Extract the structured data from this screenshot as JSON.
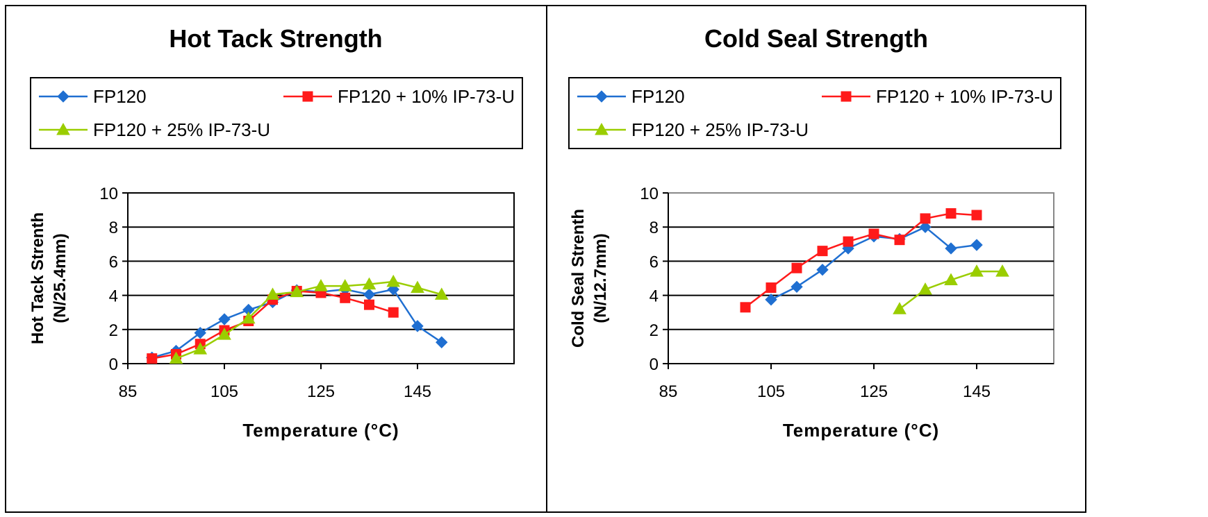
{
  "chart_data": [
    {
      "type": "line",
      "title": "Hot Tack Strength",
      "xlabel": "Temperature (°C)",
      "ylabel": [
        "Hot Tack Strenth",
        "(N/25.4mm)"
      ],
      "xlim": [
        85,
        165
      ],
      "ylim": [
        0,
        10
      ],
      "x_ticks": [
        85,
        105,
        125,
        145
      ],
      "y_ticks": [
        0,
        2,
        4,
        6,
        8,
        10
      ],
      "grid": "horizontal",
      "legend_position": "top",
      "series": [
        {
          "name": "FP120",
          "color": "#1f6fd1",
          "marker": "diamond",
          "points": [
            [
              90,
              0.35
            ],
            [
              95,
              0.75
            ],
            [
              100,
              1.8
            ],
            [
              105,
              2.6
            ],
            [
              110,
              3.15
            ],
            [
              115,
              3.6
            ],
            [
              120,
              4.3
            ],
            [
              125,
              4.2
            ],
            [
              130,
              4.35
            ],
            [
              135,
              4.05
            ],
            [
              140,
              4.35
            ],
            [
              145,
              2.2
            ],
            [
              150,
              1.25
            ]
          ]
        },
        {
          "name": "FP120 + 10% IP-73-U",
          "color": "#ff1a1a",
          "marker": "square",
          "points": [
            [
              90,
              0.3
            ],
            [
              95,
              0.55
            ],
            [
              100,
              1.15
            ],
            [
              105,
              1.95
            ],
            [
              110,
              2.5
            ],
            [
              115,
              3.75
            ],
            [
              120,
              4.25
            ],
            [
              125,
              4.15
            ],
            [
              130,
              3.85
            ],
            [
              135,
              3.45
            ],
            [
              140,
              3.0
            ]
          ]
        },
        {
          "name": "FP120 + 25% IP-73-U",
          "color": "#9acd00",
          "marker": "triangle",
          "points": [
            [
              95,
              0.3
            ],
            [
              100,
              0.85
            ],
            [
              105,
              1.7
            ],
            [
              110,
              2.65
            ],
            [
              115,
              4.05
            ],
            [
              120,
              4.2
            ],
            [
              125,
              4.55
            ],
            [
              130,
              4.55
            ],
            [
              135,
              4.65
            ],
            [
              140,
              4.8
            ],
            [
              145,
              4.45
            ],
            [
              150,
              4.05
            ]
          ]
        }
      ]
    },
    {
      "type": "line",
      "title": "Cold Seal Strength",
      "xlabel": "Temperature (°C)",
      "ylabel": [
        "Cold Seal Strenth",
        "(N/12.7mm)"
      ],
      "xlim": [
        85,
        160
      ],
      "ylim": [
        0,
        10
      ],
      "x_ticks": [
        85,
        105,
        125,
        145
      ],
      "y_ticks": [
        0,
        2,
        4,
        6,
        8,
        10
      ],
      "grid": "horizontal",
      "legend_position": "top",
      "series": [
        {
          "name": "FP120",
          "color": "#1f6fd1",
          "marker": "diamond",
          "points": [
            [
              105,
              3.75
            ],
            [
              110,
              4.5
            ],
            [
              115,
              5.5
            ],
            [
              120,
              6.75
            ],
            [
              125,
              7.45
            ],
            [
              130,
              7.3
            ],
            [
              135,
              8.0
            ],
            [
              140,
              6.75
            ],
            [
              145,
              6.95
            ]
          ]
        },
        {
          "name": "FP120 + 10% IP-73-U",
          "color": "#ff1a1a",
          "marker": "square",
          "points": [
            [
              100,
              3.3
            ],
            [
              105,
              4.45
            ],
            [
              110,
              5.6
            ],
            [
              115,
              6.6
            ],
            [
              120,
              7.15
            ],
            [
              125,
              7.6
            ],
            [
              130,
              7.25
            ],
            [
              135,
              8.5
            ],
            [
              140,
              8.8
            ],
            [
              145,
              8.7
            ]
          ]
        },
        {
          "name": "FP120 + 25% IP-73-U",
          "color": "#9acd00",
          "marker": "triangle",
          "points": [
            [
              130,
              3.2
            ],
            [
              135,
              4.35
            ],
            [
              140,
              4.9
            ],
            [
              145,
              5.4
            ],
            [
              150,
              5.4
            ]
          ]
        }
      ]
    }
  ]
}
